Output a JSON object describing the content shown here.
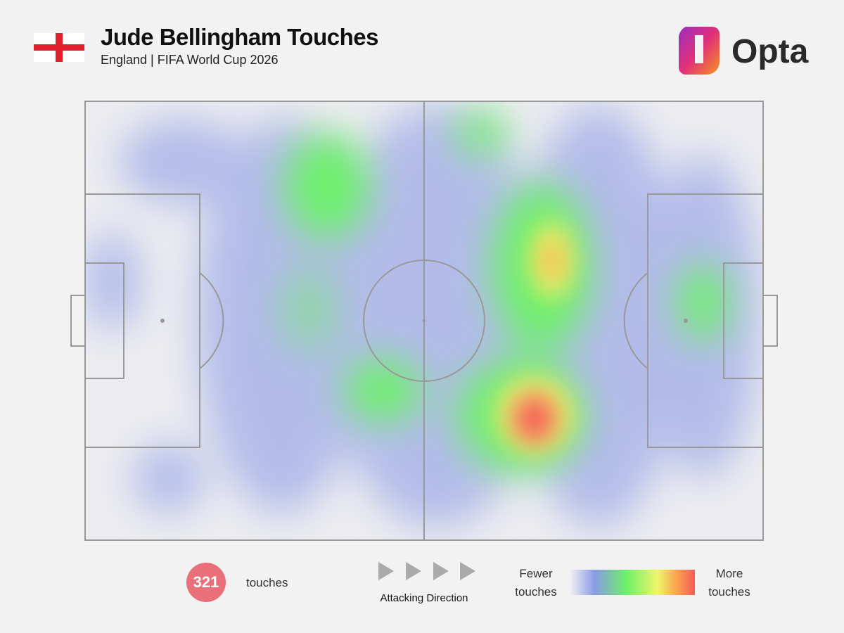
{
  "header": {
    "title": "Jude Bellingham Touches",
    "subtitle": "England | FIFA World Cup 2026",
    "brand": "Opta"
  },
  "footer": {
    "touch_count": "321",
    "touch_label": "touches",
    "direction_label": "Attacking Direction",
    "legend_low": "Fewer touches",
    "legend_high": "More touches"
  }
}
